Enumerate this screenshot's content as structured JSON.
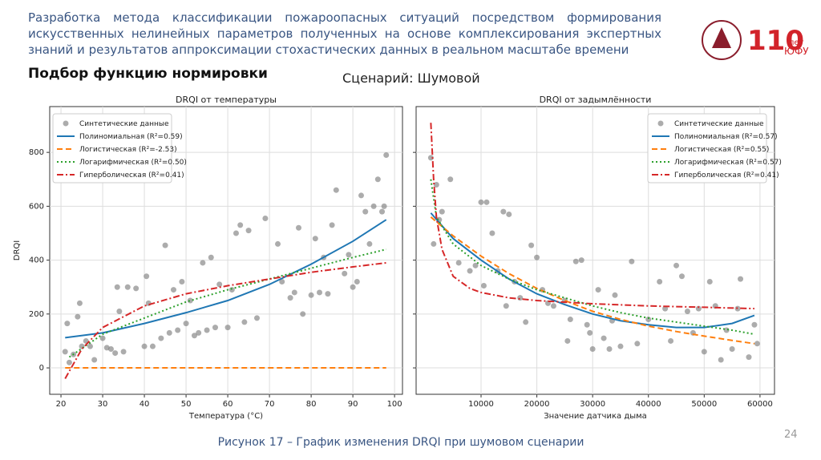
{
  "header": {
    "title": "Разработка метода классификации пожароопасных ситуаций посредством формирования искусственных нелинейных параметров полученных на основе комплексирования экспертных знаний и результатов аппроксимации стохастических данных в реальном масштабе времени",
    "subtitle": "Подбор функцию нормировки",
    "scenario": "Сценарий: Шумовой",
    "logo": {
      "number": "110",
      "years": "лет",
      "university": "ЮФУ"
    }
  },
  "chart_data": [
    {
      "type": "scatter",
      "title": "DRQI от температуры",
      "xlabel": "Температура (°C)",
      "ylabel": "DRQI",
      "xlim": [
        17.3,
        101.9
      ],
      "ylim": [
        -98,
        970
      ],
      "xticks": [
        20,
        30,
        40,
        50,
        60,
        70,
        80,
        90,
        100
      ],
      "yticks": [
        0,
        200,
        400,
        600,
        800
      ],
      "ytick_labels": true,
      "grid": true,
      "legend": "upper left",
      "series": [
        {
          "name": "Синтетические данные",
          "kind": "scatter",
          "color": "#808080",
          "x": [
            21,
            21.5,
            22,
            23,
            24,
            24.5,
            25,
            26,
            27,
            28,
            30,
            31,
            32,
            33,
            33.5,
            34,
            35,
            36,
            38,
            40,
            40.5,
            41,
            42,
            44,
            45,
            46,
            47,
            48,
            49,
            50,
            51,
            52,
            53,
            54,
            55,
            56,
            57,
            58,
            60,
            61,
            62,
            63,
            64,
            65,
            67,
            69,
            72,
            73,
            75,
            76,
            77,
            78,
            80,
            81,
            82,
            83,
            84,
            85,
            86,
            88,
            89,
            90,
            91,
            92,
            93,
            94,
            95,
            96,
            97,
            97.5,
            98
          ],
          "values": [
            60,
            165,
            20,
            50,
            190,
            240,
            80,
            100,
            80,
            30,
            110,
            75,
            70,
            55,
            300,
            210,
            60,
            300,
            295,
            80,
            340,
            240,
            80,
            110,
            455,
            130,
            290,
            140,
            320,
            165,
            250,
            120,
            130,
            390,
            140,
            410,
            150,
            310,
            150,
            290,
            500,
            530,
            170,
            510,
            185,
            555,
            460,
            320,
            260,
            280,
            520,
            200,
            270,
            480,
            280,
            410,
            275,
            530,
            660,
            350,
            420,
            300,
            320,
            640,
            580,
            460,
            600,
            700,
            580,
            600,
            790
          ]
        },
        {
          "name": "Полиномиальная (R²=0.59)",
          "kind": "line",
          "dash": "solid",
          "color": "#1f77b4",
          "x": [
            21,
            30,
            40,
            50,
            60,
            70,
            80,
            90,
            98
          ],
          "values": [
            112,
            130,
            165,
            205,
            250,
            310,
            385,
            470,
            550
          ]
        },
        {
          "name": "Логистическая (R²=-2.53)",
          "kind": "line",
          "dash": "dashed",
          "color": "#ff7f0e",
          "x": [
            21,
            98
          ],
          "values": [
            0,
            0
          ]
        },
        {
          "name": "Логарифмическая (R²=0.50)",
          "kind": "line",
          "dash": "dotted",
          "color": "#2ca02c",
          "x": [
            22,
            30,
            40,
            50,
            60,
            70,
            80,
            90,
            98
          ],
          "values": [
            40,
            125,
            185,
            245,
            290,
            330,
            370,
            410,
            440
          ]
        },
        {
          "name": "Гиперболическая (R²=0.41)",
          "kind": "line",
          "dash": "dashdot",
          "color": "#d62728",
          "x": [
            21,
            25,
            30,
            40,
            50,
            60,
            70,
            80,
            90,
            98
          ],
          "values": [
            -40,
            70,
            150,
            230,
            275,
            305,
            330,
            355,
            375,
            390
          ]
        }
      ]
    },
    {
      "type": "scatter",
      "title": "DRQI от задымлённости",
      "xlabel": "Значение датчика дыма",
      "xlim": [
        -1640,
        62600
      ],
      "ylim": [
        -98,
        970
      ],
      "xticks": [
        10000,
        20000,
        30000,
        40000,
        50000,
        60000
      ],
      "yticks": [
        0,
        200,
        400,
        600,
        800
      ],
      "ytick_labels": false,
      "grid": true,
      "legend": "upper right",
      "series": [
        {
          "name": "Синтетические данные",
          "kind": "scatter",
          "color": "#808080",
          "x": [
            1000,
            1500,
            2000,
            2500,
            3000,
            4500,
            6000,
            8000,
            9000,
            10000,
            10500,
            11000,
            12000,
            13000,
            14000,
            14500,
            15000,
            16000,
            17000,
            18000,
            19000,
            20000,
            21000,
            22000,
            23000,
            25000,
            25500,
            26000,
            27000,
            28000,
            29000,
            29500,
            30000,
            31000,
            32000,
            33000,
            33500,
            34000,
            35000,
            37000,
            38000,
            40000,
            42000,
            43000,
            44000,
            45000,
            46000,
            47000,
            48000,
            49000,
            50000,
            51000,
            52000,
            53000,
            54000,
            55000,
            56000,
            56500,
            58000,
            59000,
            59500
          ],
          "values": [
            780,
            460,
            680,
            550,
            580,
            700,
            390,
            360,
            380,
            615,
            305,
            615,
            500,
            360,
            580,
            230,
            570,
            320,
            260,
            170,
            455,
            410,
            290,
            240,
            230,
            250,
            100,
            180,
            395,
            400,
            160,
            130,
            70,
            290,
            110,
            70,
            175,
            270,
            80,
            395,
            90,
            180,
            320,
            220,
            100,
            380,
            340,
            210,
            130,
            220,
            60,
            320,
            230,
            30,
            140,
            70,
            220,
            330,
            40,
            160,
            90
          ]
        },
        {
          "name": "Полиномиальная (R²=0.57)",
          "kind": "line",
          "dash": "solid",
          "color": "#1f77b4",
          "x": [
            1000,
            5000,
            10000,
            15000,
            20000,
            25000,
            30000,
            35000,
            40000,
            45000,
            50000,
            55000,
            59000
          ],
          "values": [
            575,
            480,
            400,
            330,
            275,
            235,
            200,
            175,
            160,
            150,
            150,
            165,
            195
          ]
        },
        {
          "name": "Логистическая (R²=0.55)",
          "kind": "line",
          "dash": "dashed",
          "color": "#ff7f0e",
          "x": [
            1000,
            5000,
            10000,
            15000,
            20000,
            25000,
            30000,
            35000,
            40000,
            45000,
            50000,
            55000,
            59000
          ],
          "values": [
            560,
            490,
            415,
            350,
            295,
            250,
            210,
            180,
            155,
            135,
            118,
            102,
            90
          ]
        },
        {
          "name": "Логарифмическая (R²=0.57)",
          "kind": "line",
          "dash": "dotted",
          "color": "#2ca02c",
          "x": [
            1000,
            2000,
            5000,
            10000,
            15000,
            20000,
            25000,
            30000,
            35000,
            40000,
            45000,
            50000,
            55000,
            59000
          ],
          "values": [
            700,
            560,
            460,
            380,
            330,
            290,
            260,
            230,
            205,
            185,
            170,
            155,
            140,
            125
          ]
        },
        {
          "name": "Гиперболическая (R²=0.41)",
          "kind": "line",
          "dash": "dashdot",
          "color": "#d62728",
          "x": [
            1000,
            1500,
            2000,
            3000,
            5000,
            8000,
            10000,
            15000,
            20000,
            30000,
            40000,
            50000,
            59000
          ],
          "values": [
            910,
            700,
            560,
            440,
            340,
            295,
            280,
            260,
            250,
            238,
            230,
            225,
            220
          ]
        }
      ]
    }
  ],
  "caption": "Рисунок 17 – График изменения DRQI при шумовом сценарии",
  "page_number": "24"
}
